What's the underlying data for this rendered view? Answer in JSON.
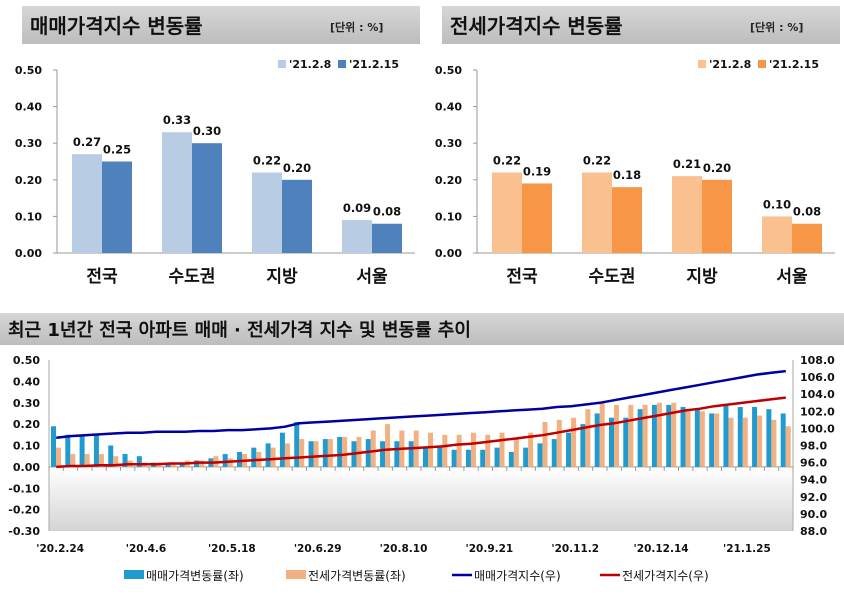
{
  "chart_data": [
    {
      "type": "bar",
      "title": "매매가격지수 변동률",
      "unit": "[단위 : %]",
      "categories": [
        "전국",
        "수도권",
        "지방",
        "서울"
      ],
      "series": [
        {
          "name": "'21.2.8",
          "values": [
            0.27,
            0.33,
            0.22,
            0.09
          ],
          "color": "#b8cce4"
        },
        {
          "name": "'21.2.15",
          "values": [
            0.25,
            0.3,
            0.2,
            0.08
          ],
          "color": "#4f81bd"
        }
      ],
      "ylim": [
        0,
        0.5
      ],
      "yticks": [
        "0.00",
        "0.10",
        "0.20",
        "0.30",
        "0.40",
        "0.50"
      ],
      "legend": "top-right",
      "grid": false
    },
    {
      "type": "bar",
      "title": "전세가격지수 변동률",
      "unit": "[단위 : %]",
      "categories": [
        "전국",
        "수도권",
        "지방",
        "서울"
      ],
      "series": [
        {
          "name": "'21.2.8",
          "values": [
            0.22,
            0.22,
            0.21,
            0.1
          ],
          "color": "#fac090"
        },
        {
          "name": "'21.2.15",
          "values": [
            0.19,
            0.18,
            0.2,
            0.08
          ],
          "color": "#f79646"
        }
      ],
      "ylim": [
        0,
        0.5
      ],
      "yticks": [
        "0.00",
        "0.10",
        "0.20",
        "0.30",
        "0.40",
        "0.50"
      ],
      "legend": "top-right",
      "grid": false
    },
    {
      "type": "bar+line",
      "title": "최근 1년간 전국 아파트 매매 · 전세가격 지수 및 변동률 추이",
      "xticks": [
        "'20.2.24",
        "'20.4.6",
        "'20.5.18",
        "'20.6.29",
        "'20.8.10",
        "'20.9.21",
        "'20.11.2",
        "'20.12.14",
        "'21.1.25"
      ],
      "ylim_left": [
        -0.3,
        0.5
      ],
      "yticks_left": [
        "0.50",
        "0.40",
        "0.30",
        "0.20",
        "0.10",
        "0.00",
        "-0.10",
        "-0.20",
        "-0.30"
      ],
      "ylim_right": [
        88,
        108
      ],
      "yticks_right": [
        "108.0",
        "106.0",
        "104.0",
        "102.0",
        "100.0",
        "98.0",
        "96.0",
        "94.0",
        "92.0",
        "90.0",
        "88.0"
      ],
      "legend": "bottom",
      "series": [
        {
          "name": "매매가격변동률(좌)",
          "type": "bar",
          "axis": "left",
          "color": "#1f9bcf",
          "values": [
            0.19,
            0.15,
            0.15,
            0.15,
            0.1,
            0.06,
            0.05,
            0.02,
            0.02,
            0.02,
            0.03,
            0.04,
            0.06,
            0.07,
            0.09,
            0.11,
            0.16,
            0.21,
            0.12,
            0.13,
            0.14,
            0.12,
            0.13,
            0.12,
            0.12,
            0.12,
            0.09,
            0.09,
            0.08,
            0.08,
            0.08,
            0.09,
            0.07,
            0.09,
            0.11,
            0.13,
            0.16,
            0.2,
            0.25,
            0.23,
            0.23,
            0.27,
            0.29,
            0.29,
            0.28,
            0.27,
            0.25,
            0.29,
            0.28,
            0.28,
            0.27,
            0.25
          ]
        },
        {
          "name": "전세가격변동률(좌)",
          "type": "bar",
          "axis": "left",
          "color": "#f2b183",
          "values": [
            0.09,
            0.06,
            0.06,
            0.06,
            0.05,
            0.03,
            0.02,
            0.02,
            0.02,
            0.03,
            0.03,
            0.05,
            0.04,
            0.06,
            0.07,
            0.09,
            0.11,
            0.13,
            0.12,
            0.13,
            0.14,
            0.14,
            0.17,
            0.2,
            0.17,
            0.17,
            0.16,
            0.15,
            0.15,
            0.16,
            0.15,
            0.16,
            0.13,
            0.16,
            0.21,
            0.22,
            0.23,
            0.27,
            0.3,
            0.29,
            0.29,
            0.29,
            0.3,
            0.3,
            0.26,
            0.26,
            0.25,
            0.23,
            0.23,
            0.24,
            0.22,
            0.19
          ]
        },
        {
          "name": "매매가격지수(우)",
          "type": "line",
          "axis": "right",
          "color": "#0000a0",
          "values": [
            98.9,
            99.1,
            99.2,
            99.3,
            99.4,
            99.5,
            99.5,
            99.6,
            99.6,
            99.6,
            99.7,
            99.7,
            99.8,
            99.8,
            99.9,
            100.0,
            100.2,
            100.6,
            100.7,
            100.8,
            100.9,
            101.0,
            101.1,
            101.2,
            101.3,
            101.4,
            101.5,
            101.6,
            101.7,
            101.8,
            101.9,
            102.0,
            102.1,
            102.2,
            102.3,
            102.5,
            102.6,
            102.8,
            103.0,
            103.3,
            103.6,
            103.9,
            104.2,
            104.5,
            104.8,
            105.1,
            105.4,
            105.7,
            106.0,
            106.3,
            106.5,
            106.7
          ]
        },
        {
          "name": "전세가격지수(우)",
          "type": "line",
          "axis": "right",
          "color": "#c00000",
          "values": [
            95.5,
            95.6,
            95.6,
            95.7,
            95.7,
            95.8,
            95.8,
            95.8,
            95.9,
            95.9,
            96.0,
            96.0,
            96.1,
            96.2,
            96.3,
            96.4,
            96.5,
            96.6,
            96.7,
            96.8,
            96.9,
            97.1,
            97.3,
            97.5,
            97.6,
            97.7,
            97.8,
            97.9,
            98.1,
            98.2,
            98.4,
            98.6,
            98.8,
            99.0,
            99.2,
            99.5,
            99.8,
            100.1,
            100.4,
            100.6,
            100.9,
            101.2,
            101.5,
            101.8,
            102.1,
            102.3,
            102.6,
            102.8,
            103.0,
            103.2,
            103.4,
            103.6
          ]
        }
      ]
    }
  ]
}
